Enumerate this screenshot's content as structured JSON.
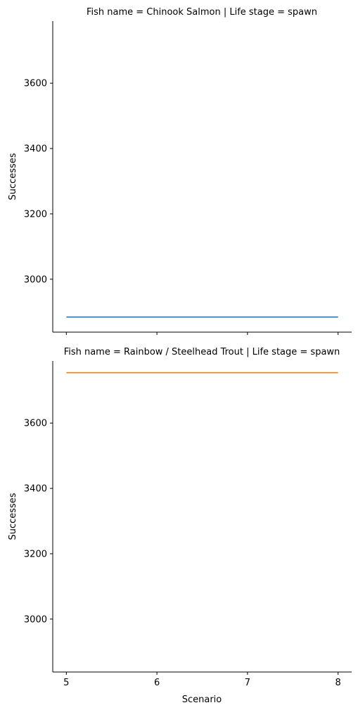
{
  "chart_data": [
    {
      "type": "line",
      "title": "Fish name = Chinook Salmon | Life stage = spawn",
      "xlabel": "",
      "ylabel": "Successes",
      "x": [
        5,
        6,
        7,
        8
      ],
      "xticks": [
        "5",
        "6",
        "7",
        "8"
      ],
      "show_xtick_labels": false,
      "yticks": [
        3000,
        3200,
        3400,
        3600
      ],
      "ytick_labels": [
        "3000",
        "3200",
        "3400",
        "3600"
      ],
      "xlim": [
        4.85,
        8.15
      ],
      "ylim": [
        2838,
        3790
      ],
      "grid": false,
      "series": [
        {
          "color": "#1f77b4",
          "values": [
            2884,
            2884,
            2884,
            2884
          ]
        }
      ]
    },
    {
      "type": "line",
      "title": "Fish name = Rainbow / Steelhead Trout | Life stage = spawn",
      "xlabel": "Scenario",
      "ylabel": "Successes",
      "x": [
        5,
        6,
        7,
        8
      ],
      "xticks": [
        "5",
        "6",
        "7",
        "8"
      ],
      "show_xtick_labels": true,
      "yticks": [
        3000,
        3200,
        3400,
        3600
      ],
      "ytick_labels": [
        "3000",
        "3200",
        "3400",
        "3600"
      ],
      "xlim": [
        4.85,
        8.15
      ],
      "ylim": [
        2838,
        3790
      ],
      "grid": false,
      "series": [
        {
          "color": "#ff7f0e",
          "values": [
            3754,
            3754,
            3754,
            3754
          ]
        }
      ]
    }
  ]
}
